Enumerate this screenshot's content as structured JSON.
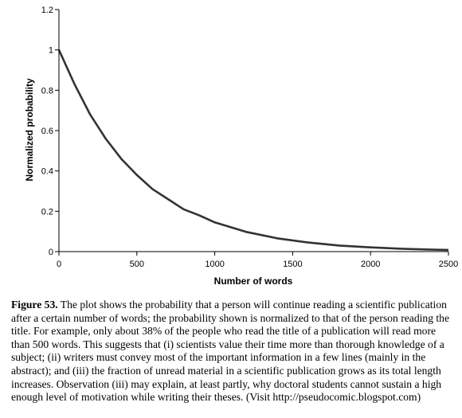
{
  "chart_data": {
    "type": "line",
    "title": "",
    "xlabel": "Number of words",
    "ylabel": "Normalized probability",
    "xlim": [
      0,
      2500
    ],
    "ylim": [
      0,
      1.2
    ],
    "x_ticks": [
      0,
      500,
      1000,
      1500,
      2000,
      2500
    ],
    "y_ticks": [
      0,
      0.2,
      0.4,
      0.6,
      0.8,
      1,
      1.2
    ],
    "y_tick_labels": [
      "0",
      "0.2",
      "0.4",
      "0.6",
      "0.8",
      "1",
      "1.2"
    ],
    "grid": false,
    "legend": "none",
    "series": [
      {
        "color": "#333333",
        "x": [
          0,
          100,
          200,
          300,
          400,
          500,
          600,
          700,
          800,
          900,
          1000,
          1200,
          1400,
          1600,
          1800,
          2000,
          2200,
          2400,
          2500
        ],
        "y": [
          1.0,
          0.83,
          0.68,
          0.56,
          0.46,
          0.38,
          0.31,
          0.26,
          0.21,
          0.18,
          0.145,
          0.098,
          0.066,
          0.045,
          0.03,
          0.021,
          0.014,
          0.0095,
          0.008
        ]
      }
    ]
  },
  "caption": {
    "label": "Figure 53.",
    "text": " The plot shows the probability that a person will continue reading a scientific publication after a certain number of words; the probability shown is normalized to that of the person reading the title. For example, only about 38% of the people who read the title of a publication will read more than 500 words. This suggests that (i) scientists value their time more than thorough knowledge of a subject; (ii) writers must convey most of the important information in a few lines (mainly in the abstract); and (iii) the fraction of unread material in a scientific publication grows as its total length increases. Observation (iii) may explain, at least partly, why doctoral students cannot sustain a high enough level of motivation while writing their theses. (Visit http://pseudocomic.blogspot.com)"
  }
}
